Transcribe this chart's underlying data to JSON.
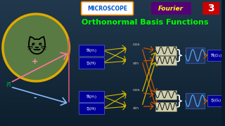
{
  "bg_color_top": "#1a3a2a",
  "bg_color_bot": "#0a1a2a",
  "title_text": "Orthonormal Basis Functions",
  "title_color": "#00ff00",
  "microscope_text": "MICROSCOPE",
  "microscope_bg": "#ffffff",
  "microscope_text_color": "#0055cc",
  "fourier_text": "Fourier",
  "fourier_bg": "#550077",
  "fourier_color": "#ffff00",
  "number_text": "3",
  "number_bg": "#cc0000",
  "number_color": "#ffffff",
  "label_bg": "#000099",
  "label_color": "#ffffff",
  "cos_label": "cos",
  "sin_label": "sin",
  "arrow_yellow": "#d4b800",
  "arrow_orange": "#cc5500",
  "arrow_pink": "#ff7799",
  "arrow_blue": "#88bbff",
  "plus_color": "#ff99aa",
  "minus_color": "#88ccff",
  "f_label_color": "#00cc44",
  "wave_bg": "#e8e8cc",
  "output_wave_bg": "#223355",
  "output_wave_color": "#44aaff",
  "brace_color": "#ffffff",
  "output_label_bg": "#000099"
}
